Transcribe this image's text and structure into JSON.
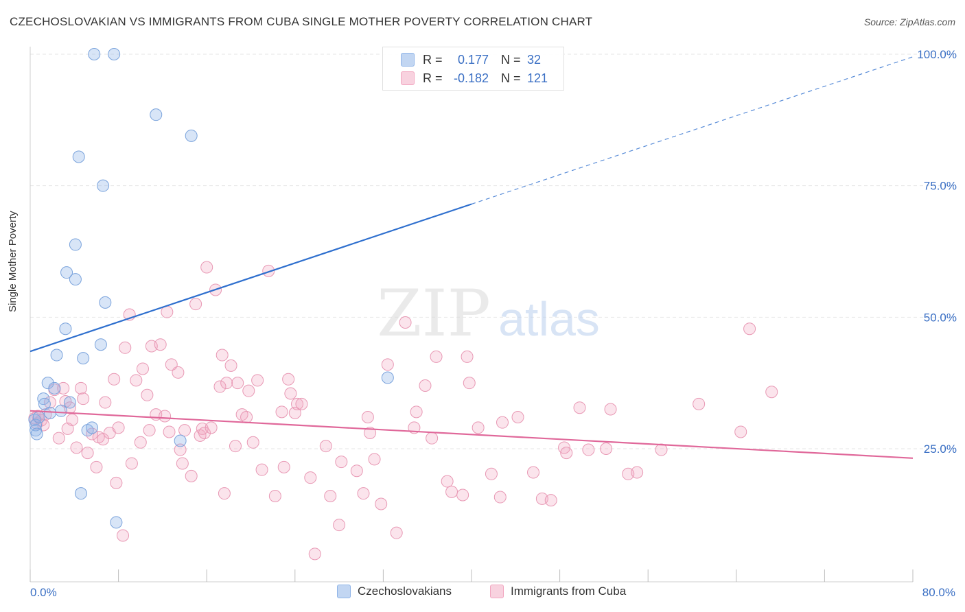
{
  "header": {
    "title": "CZECHOSLOVAKIAN VS IMMIGRANTS FROM CUBA SINGLE MOTHER POVERTY CORRELATION CHART",
    "source": "Source: ZipAtlas.com"
  },
  "watermark": {
    "zip": "ZIP",
    "atlas": "atlas"
  },
  "stats": {
    "rows": [
      {
        "r_label": "R =",
        "r_value": "0.177",
        "n_label": "N =",
        "n_value": "32",
        "color": "#8fb4e8"
      },
      {
        "r_label": "R =",
        "r_value": "-0.182",
        "n_label": "N =",
        "n_value": "121",
        "color": "#f2a6c0"
      }
    ]
  },
  "legend": {
    "items": [
      {
        "label": "Czechoslovakians",
        "color": "#8fb4e8"
      },
      {
        "label": "Immigrants from Cuba",
        "color": "#f2a6c0"
      }
    ]
  },
  "colors": {
    "blue_fill": "rgba(143,180,232,0.35)",
    "blue_stroke": "#7aa3dc",
    "blue_line": "#2e6fce",
    "pink_fill": "rgba(242,166,192,0.30)",
    "pink_stroke": "#e898b4",
    "pink_line": "#e0689a",
    "grid": "#e6e6e6",
    "tick_text": "#3a6fc4"
  },
  "chart_data": {
    "type": "scatter",
    "title": "CZECHOSLOVAKIAN VS IMMIGRANTS FROM CUBA SINGLE MOTHER POVERTY CORRELATION CHART",
    "xlabel": "",
    "ylabel": "Single Mother Poverty",
    "xlim": [
      0,
      80
    ],
    "ylim": [
      0,
      102
    ],
    "x_tick_labels": [
      "0.0%",
      "80.0%"
    ],
    "y_ticks": [
      25,
      50,
      75,
      100
    ],
    "y_tick_labels": [
      "25.0%",
      "50.0%",
      "75.0%",
      "100.0%"
    ],
    "grid": true,
    "legend_position": "bottom-center",
    "series": [
      {
        "name": "Czechoslovakians",
        "points": [
          [
            0.4,
            30.5
          ],
          [
            0.5,
            28.5
          ],
          [
            0.5,
            29.5
          ],
          [
            0.6,
            27.8
          ],
          [
            0.8,
            31.0
          ],
          [
            1.2,
            34.5
          ],
          [
            1.3,
            33.5
          ],
          [
            1.6,
            37.5
          ],
          [
            1.8,
            31.8
          ],
          [
            2.2,
            36.5
          ],
          [
            2.4,
            42.8
          ],
          [
            2.8,
            32.2
          ],
          [
            3.2,
            47.8
          ],
          [
            3.3,
            58.5
          ],
          [
            3.6,
            33.8
          ],
          [
            4.1,
            63.8
          ],
          [
            4.1,
            57.2
          ],
          [
            4.4,
            80.5
          ],
          [
            4.6,
            16.5
          ],
          [
            4.8,
            42.2
          ],
          [
            5.2,
            28.5
          ],
          [
            5.6,
            29.0
          ],
          [
            5.8,
            100.0
          ],
          [
            6.4,
            44.8
          ],
          [
            6.6,
            75.0
          ],
          [
            7.6,
            100.0
          ],
          [
            6.8,
            52.8
          ],
          [
            7.8,
            11.0
          ],
          [
            11.4,
            88.5
          ],
          [
            13.6,
            26.5
          ],
          [
            14.6,
            84.5
          ],
          [
            32.4,
            38.5
          ]
        ],
        "trend": {
          "x": [
            0,
            40
          ],
          "y": [
            43.5,
            71.5
          ],
          "extension_to": [
            80,
            99.5
          ]
        }
      },
      {
        "name": "Immigrants from Cuba",
        "points": [
          [
            0.4,
            30.8
          ],
          [
            0.6,
            29.8
          ],
          [
            0.7,
            31.2
          ],
          [
            1.0,
            30.4
          ],
          [
            1.2,
            29.5
          ],
          [
            1.4,
            31.5
          ],
          [
            1.8,
            33.8
          ],
          [
            2.2,
            36.2
          ],
          [
            2.6,
            27.0
          ],
          [
            3.0,
            36.5
          ],
          [
            3.2,
            34.0
          ],
          [
            3.4,
            28.8
          ],
          [
            3.6,
            32.8
          ],
          [
            3.8,
            30.5
          ],
          [
            4.2,
            25.2
          ],
          [
            4.6,
            36.5
          ],
          [
            4.8,
            34.5
          ],
          [
            5.2,
            24.2
          ],
          [
            5.6,
            27.8
          ],
          [
            6.0,
            21.5
          ],
          [
            6.2,
            27.2
          ],
          [
            6.6,
            26.8
          ],
          [
            6.8,
            33.8
          ],
          [
            7.2,
            28.0
          ],
          [
            7.6,
            38.2
          ],
          [
            7.8,
            18.5
          ],
          [
            8.0,
            29.0
          ],
          [
            8.4,
            8.5
          ],
          [
            8.6,
            44.2
          ],
          [
            9.0,
            50.5
          ],
          [
            9.2,
            22.2
          ],
          [
            9.6,
            38.0
          ],
          [
            10.0,
            26.2
          ],
          [
            10.2,
            40.2
          ],
          [
            10.6,
            35.2
          ],
          [
            10.8,
            28.5
          ],
          [
            11.0,
            44.5
          ],
          [
            11.4,
            31.5
          ],
          [
            11.8,
            44.8
          ],
          [
            12.2,
            31.2
          ],
          [
            12.4,
            51.0
          ],
          [
            12.6,
            28.2
          ],
          [
            12.8,
            41.0
          ],
          [
            13.4,
            39.5
          ],
          [
            13.6,
            24.8
          ],
          [
            13.8,
            22.2
          ],
          [
            14.0,
            28.5
          ],
          [
            14.6,
            19.8
          ],
          [
            15.0,
            52.5
          ],
          [
            15.4,
            27.5
          ],
          [
            15.6,
            28.8
          ],
          [
            15.8,
            28.0
          ],
          [
            16.0,
            59.5
          ],
          [
            16.4,
            29.0
          ],
          [
            16.8,
            55.2
          ],
          [
            17.2,
            36.8
          ],
          [
            17.4,
            42.8
          ],
          [
            17.6,
            16.5
          ],
          [
            17.8,
            37.5
          ],
          [
            18.2,
            40.8
          ],
          [
            18.6,
            25.5
          ],
          [
            18.8,
            37.5
          ],
          [
            19.2,
            31.5
          ],
          [
            19.6,
            31.0
          ],
          [
            19.8,
            36.0
          ],
          [
            20.2,
            26.2
          ],
          [
            20.6,
            38.0
          ],
          [
            21.0,
            21.0
          ],
          [
            21.6,
            58.8
          ],
          [
            22.2,
            16.0
          ],
          [
            22.8,
            32.0
          ],
          [
            23.0,
            21.5
          ],
          [
            23.4,
            38.2
          ],
          [
            23.6,
            35.5
          ],
          [
            24.0,
            31.8
          ],
          [
            24.2,
            33.5
          ],
          [
            24.6,
            33.5
          ],
          [
            25.4,
            19.5
          ],
          [
            25.8,
            5.0
          ],
          [
            26.8,
            25.5
          ],
          [
            27.2,
            16.0
          ],
          [
            28.0,
            10.5
          ],
          [
            28.2,
            22.5
          ],
          [
            29.6,
            20.8
          ],
          [
            30.2,
            16.5
          ],
          [
            30.6,
            31.0
          ],
          [
            30.8,
            28.0
          ],
          [
            31.2,
            23.0
          ],
          [
            31.8,
            14.5
          ],
          [
            32.4,
            41.0
          ],
          [
            33.2,
            9.0
          ],
          [
            34.0,
            49.0
          ],
          [
            34.8,
            29.0
          ],
          [
            35.0,
            32.0
          ],
          [
            35.8,
            37.0
          ],
          [
            36.4,
            27.0
          ],
          [
            36.8,
            42.5
          ],
          [
            37.8,
            18.8
          ],
          [
            38.2,
            16.8
          ],
          [
            39.2,
            16.2
          ],
          [
            39.6,
            42.5
          ],
          [
            39.8,
            37.5
          ],
          [
            40.6,
            29.0
          ],
          [
            41.8,
            20.2
          ],
          [
            42.6,
            15.8
          ],
          [
            42.8,
            30.0
          ],
          [
            44.2,
            31.0
          ],
          [
            45.6,
            20.5
          ],
          [
            46.4,
            15.5
          ],
          [
            47.2,
            15.2
          ],
          [
            48.4,
            25.2
          ],
          [
            48.6,
            24.2
          ],
          [
            49.8,
            32.8
          ],
          [
            50.6,
            24.8
          ],
          [
            52.2,
            25.0
          ],
          [
            52.6,
            32.5
          ],
          [
            54.2,
            20.2
          ],
          [
            55.0,
            20.5
          ],
          [
            57.2,
            24.8
          ],
          [
            60.6,
            33.5
          ],
          [
            64.4,
            28.2
          ],
          [
            65.2,
            47.8
          ],
          [
            67.2,
            35.8
          ]
        ],
        "trend": {
          "x": [
            0,
            80
          ],
          "y": [
            32.2,
            23.2
          ]
        }
      }
    ]
  }
}
